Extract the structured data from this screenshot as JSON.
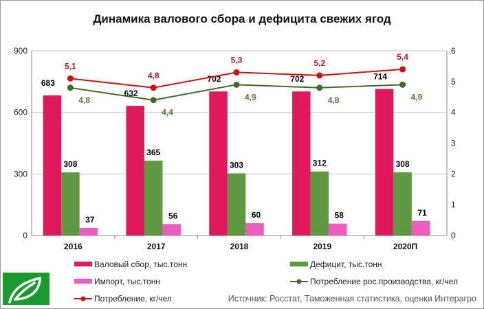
{
  "chart_data": {
    "type": "bar",
    "title": "Динамика валового сбора и дефицита свежих ягод",
    "categories": [
      "2016",
      "2017",
      "2018",
      "2019",
      "2020П"
    ],
    "y_left": {
      "range": [
        0,
        900
      ],
      "ticks": [
        "0",
        "300",
        "600",
        "900"
      ]
    },
    "y_right": {
      "range": [
        0,
        6
      ],
      "ticks": [
        "0",
        "1",
        "2",
        "3",
        "4",
        "5",
        "6"
      ]
    },
    "grid": true,
    "legend_position": "bottom",
    "series": [
      {
        "name": "Валовый сбор, тыс.тонн",
        "kind": "bar",
        "axis": "left",
        "color": "#E0185C",
        "values": [
          683,
          632,
          702,
          702,
          714
        ],
        "labels": [
          "683",
          "632",
          "702",
          "702",
          "714"
        ],
        "label_color": "#000000"
      },
      {
        "name": "Дефицит, тыс.тонн",
        "kind": "bar",
        "axis": "left",
        "color": "#5E9841",
        "values": [
          308,
          365,
          303,
          312,
          308
        ],
        "labels": [
          "308",
          "365",
          "303",
          "312",
          "308"
        ],
        "label_color": "#000000"
      },
      {
        "name": "Импорт, тыс.тонн",
        "kind": "bar",
        "axis": "left",
        "color": "#EE5CC0",
        "values": [
          37,
          56,
          60,
          58,
          71
        ],
        "labels": [
          "37",
          "56",
          "60",
          "58",
          "71"
        ],
        "label_color": "#000000"
      },
      {
        "name": "Потребление рос.производства, кг/чел",
        "kind": "line",
        "axis": "right",
        "color": "#3F6B2A",
        "values": [
          4.8,
          4.4,
          4.9,
          4.8,
          4.9
        ],
        "labels": [
          "4,8",
          "4,4",
          "4,9",
          "4,8",
          "4,9"
        ],
        "label_color": "#4E7A32"
      },
      {
        "name": "Потребление, кг/чел",
        "kind": "line",
        "axis": "right",
        "color": "#CC1111",
        "values": [
          5.1,
          4.8,
          5.3,
          5.2,
          5.4
        ],
        "labels": [
          "5,1",
          "4,8",
          "5,3",
          "5,2",
          "5,4"
        ],
        "label_color": "#C0141C"
      }
    ],
    "source": "Источник: Росстат, Таможенная статистика, оценки Интерагро"
  },
  "logo": {
    "icon": "leaf-icon",
    "color": "#1A9A2E"
  }
}
